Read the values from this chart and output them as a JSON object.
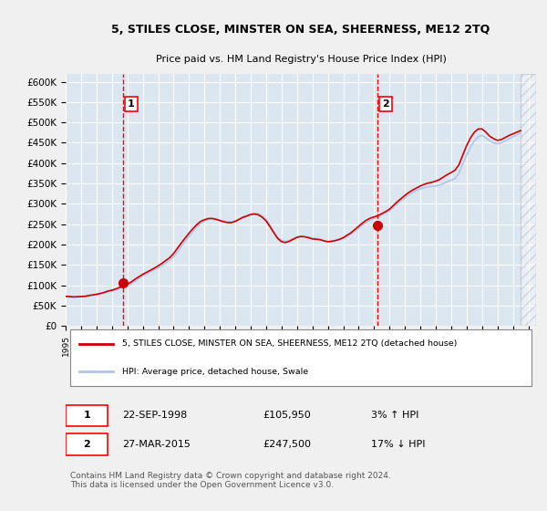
{
  "title": "5, STILES CLOSE, MINSTER ON SEA, SHEERNESS, ME12 2TQ",
  "subtitle": "Price paid vs. HM Land Registry's House Price Index (HPI)",
  "ylim": [
    0,
    620000
  ],
  "yticks": [
    0,
    50000,
    100000,
    150000,
    200000,
    250000,
    300000,
    350000,
    400000,
    450000,
    500000,
    550000,
    600000
  ],
  "ytick_labels": [
    "£0",
    "£50K",
    "£100K",
    "£150K",
    "£200K",
    "£250K",
    "£300K",
    "£350K",
    "£400K",
    "£450K",
    "£500K",
    "£550K",
    "£600K"
  ],
  "xlim_start": 1995.0,
  "xlim_end": 2025.5,
  "background_color": "#dce6f1",
  "plot_bg_color": "#dce6f1",
  "grid_color": "#ffffff",
  "hpi_color": "#aec6e8",
  "price_color": "#cc0000",
  "marker_color": "#cc0000",
  "sale1_x": 1998.73,
  "sale1_y": 105950,
  "sale1_label": "1",
  "sale1_date": "22-SEP-1998",
  "sale1_price": "£105,950",
  "sale1_hpi": "3% ↑ HPI",
  "sale2_x": 2015.23,
  "sale2_y": 247500,
  "sale2_label": "2",
  "sale2_date": "27-MAR-2015",
  "sale2_price": "£247,500",
  "sale2_hpi": "17% ↓ HPI",
  "legend_line1": "5, STILES CLOSE, MINSTER ON SEA, SHEERNESS, ME12 2TQ (detached house)",
  "legend_line2": "HPI: Average price, detached house, Swale",
  "footer": "Contains HM Land Registry data © Crown copyright and database right 2024.\nThis data is licensed under the Open Government Licence v3.0.",
  "hpi_years": [
    1995.0,
    1995.25,
    1995.5,
    1995.75,
    1996.0,
    1996.25,
    1996.5,
    1996.75,
    1997.0,
    1997.25,
    1997.5,
    1997.75,
    1998.0,
    1998.25,
    1998.5,
    1998.75,
    1999.0,
    1999.25,
    1999.5,
    1999.75,
    2000.0,
    2000.25,
    2000.5,
    2000.75,
    2001.0,
    2001.25,
    2001.5,
    2001.75,
    2002.0,
    2002.25,
    2002.5,
    2002.75,
    2003.0,
    2003.25,
    2003.5,
    2003.75,
    2004.0,
    2004.25,
    2004.5,
    2004.75,
    2005.0,
    2005.25,
    2005.5,
    2005.75,
    2006.0,
    2006.25,
    2006.5,
    2006.75,
    2007.0,
    2007.25,
    2007.5,
    2007.75,
    2008.0,
    2008.25,
    2008.5,
    2008.75,
    2009.0,
    2009.25,
    2009.5,
    2009.75,
    2010.0,
    2010.25,
    2010.5,
    2010.75,
    2011.0,
    2011.25,
    2011.5,
    2011.75,
    2012.0,
    2012.25,
    2012.5,
    2012.75,
    2013.0,
    2013.25,
    2013.5,
    2013.75,
    2014.0,
    2014.25,
    2014.5,
    2014.75,
    2015.0,
    2015.25,
    2015.5,
    2015.75,
    2016.0,
    2016.25,
    2016.5,
    2016.75,
    2017.0,
    2017.25,
    2017.5,
    2017.75,
    2018.0,
    2018.25,
    2018.5,
    2018.75,
    2019.0,
    2019.25,
    2019.5,
    2019.75,
    2020.0,
    2020.25,
    2020.5,
    2020.75,
    2021.0,
    2021.25,
    2021.5,
    2021.75,
    2022.0,
    2022.25,
    2022.5,
    2022.75,
    2023.0,
    2023.25,
    2023.5,
    2023.75,
    2024.0,
    2024.25,
    2024.5
  ],
  "hpi_values": [
    72000,
    71000,
    70500,
    71000,
    71500,
    72000,
    73500,
    75000,
    76500,
    79000,
    81000,
    84000,
    86000,
    89000,
    92000,
    95000,
    99000,
    104000,
    110000,
    117000,
    123000,
    128000,
    133000,
    138000,
    143000,
    148000,
    155000,
    162000,
    170000,
    182000,
    196000,
    209000,
    220000,
    232000,
    243000,
    252000,
    258000,
    263000,
    265000,
    263000,
    260000,
    258000,
    256000,
    256000,
    258000,
    263000,
    268000,
    272000,
    275000,
    277000,
    276000,
    270000,
    262000,
    248000,
    232000,
    218000,
    210000,
    208000,
    210000,
    214000,
    218000,
    220000,
    220000,
    218000,
    215000,
    215000,
    213000,
    210000,
    208000,
    208000,
    210000,
    212000,
    215000,
    220000,
    226000,
    233000,
    240000,
    248000,
    255000,
    260000,
    264000,
    268000,
    273000,
    278000,
    284000,
    292000,
    300000,
    308000,
    315000,
    322000,
    328000,
    333000,
    337000,
    340000,
    342000,
    343000,
    344000,
    346000,
    350000,
    355000,
    358000,
    362000,
    375000,
    398000,
    420000,
    440000,
    455000,
    465000,
    468000,
    462000,
    455000,
    450000,
    448000,
    450000,
    455000,
    460000,
    465000,
    470000,
    475000
  ],
  "price_years": [
    1995.0,
    1995.25,
    1995.5,
    1995.75,
    1996.0,
    1996.25,
    1996.5,
    1996.75,
    1997.0,
    1997.25,
    1997.5,
    1997.75,
    1998.0,
    1998.25,
    1998.5,
    1998.75,
    1999.0,
    1999.25,
    1999.5,
    1999.75,
    2000.0,
    2000.25,
    2000.5,
    2000.75,
    2001.0,
    2001.25,
    2001.5,
    2001.75,
    2002.0,
    2002.25,
    2002.5,
    2002.75,
    2003.0,
    2003.25,
    2003.5,
    2003.75,
    2004.0,
    2004.25,
    2004.5,
    2004.75,
    2005.0,
    2005.25,
    2005.5,
    2005.75,
    2006.0,
    2006.25,
    2006.5,
    2006.75,
    2007.0,
    2007.25,
    2007.5,
    2007.75,
    2008.0,
    2008.25,
    2008.5,
    2008.75,
    2009.0,
    2009.25,
    2009.5,
    2009.75,
    2010.0,
    2010.25,
    2010.5,
    2010.75,
    2011.0,
    2011.25,
    2011.5,
    2011.75,
    2012.0,
    2012.25,
    2012.5,
    2012.75,
    2013.0,
    2013.25,
    2013.5,
    2013.75,
    2014.0,
    2014.25,
    2014.5,
    2014.75,
    2015.0,
    2015.25,
    2015.5,
    2015.75,
    2016.0,
    2016.25,
    2016.5,
    2016.75,
    2017.0,
    2017.25,
    2017.5,
    2017.75,
    2018.0,
    2018.25,
    2018.5,
    2018.75,
    2019.0,
    2019.25,
    2019.5,
    2019.75,
    2020.0,
    2020.25,
    2020.5,
    2020.75,
    2021.0,
    2021.25,
    2021.5,
    2021.75,
    2022.0,
    2022.25,
    2022.5,
    2022.75,
    2023.0,
    2023.25,
    2023.5,
    2023.75,
    2024.0,
    2024.25,
    2024.5
  ],
  "price_values": [
    73000,
    72500,
    71500,
    72000,
    72500,
    73000,
    75000,
    76500,
    78000,
    80000,
    82500,
    86000,
    88000,
    91000,
    95000,
    98000,
    103000,
    108000,
    115000,
    121000,
    127000,
    132000,
    137000,
    142000,
    148000,
    154000,
    161000,
    168000,
    178000,
    191000,
    204000,
    216000,
    228000,
    239000,
    249000,
    257000,
    261000,
    264000,
    264000,
    262000,
    259000,
    256000,
    254000,
    254000,
    257000,
    262000,
    267000,
    270000,
    274000,
    275000,
    273000,
    267000,
    258000,
    244000,
    229000,
    215000,
    207000,
    205000,
    208000,
    213000,
    218000,
    220000,
    219000,
    217000,
    214000,
    213000,
    212000,
    209000,
    207000,
    208000,
    210000,
    213000,
    217000,
    223000,
    229000,
    237000,
    245000,
    253000,
    260000,
    265000,
    268000,
    271000,
    276000,
    281000,
    287000,
    296000,
    305000,
    313000,
    321000,
    328000,
    334000,
    339000,
    344000,
    348000,
    351000,
    353000,
    356000,
    360000,
    366000,
    372000,
    377000,
    383000,
    396000,
    420000,
    443000,
    462000,
    476000,
    484000,
    484000,
    476000,
    466000,
    460000,
    456000,
    458000,
    463000,
    468000,
    472000,
    476000,
    480000
  ]
}
